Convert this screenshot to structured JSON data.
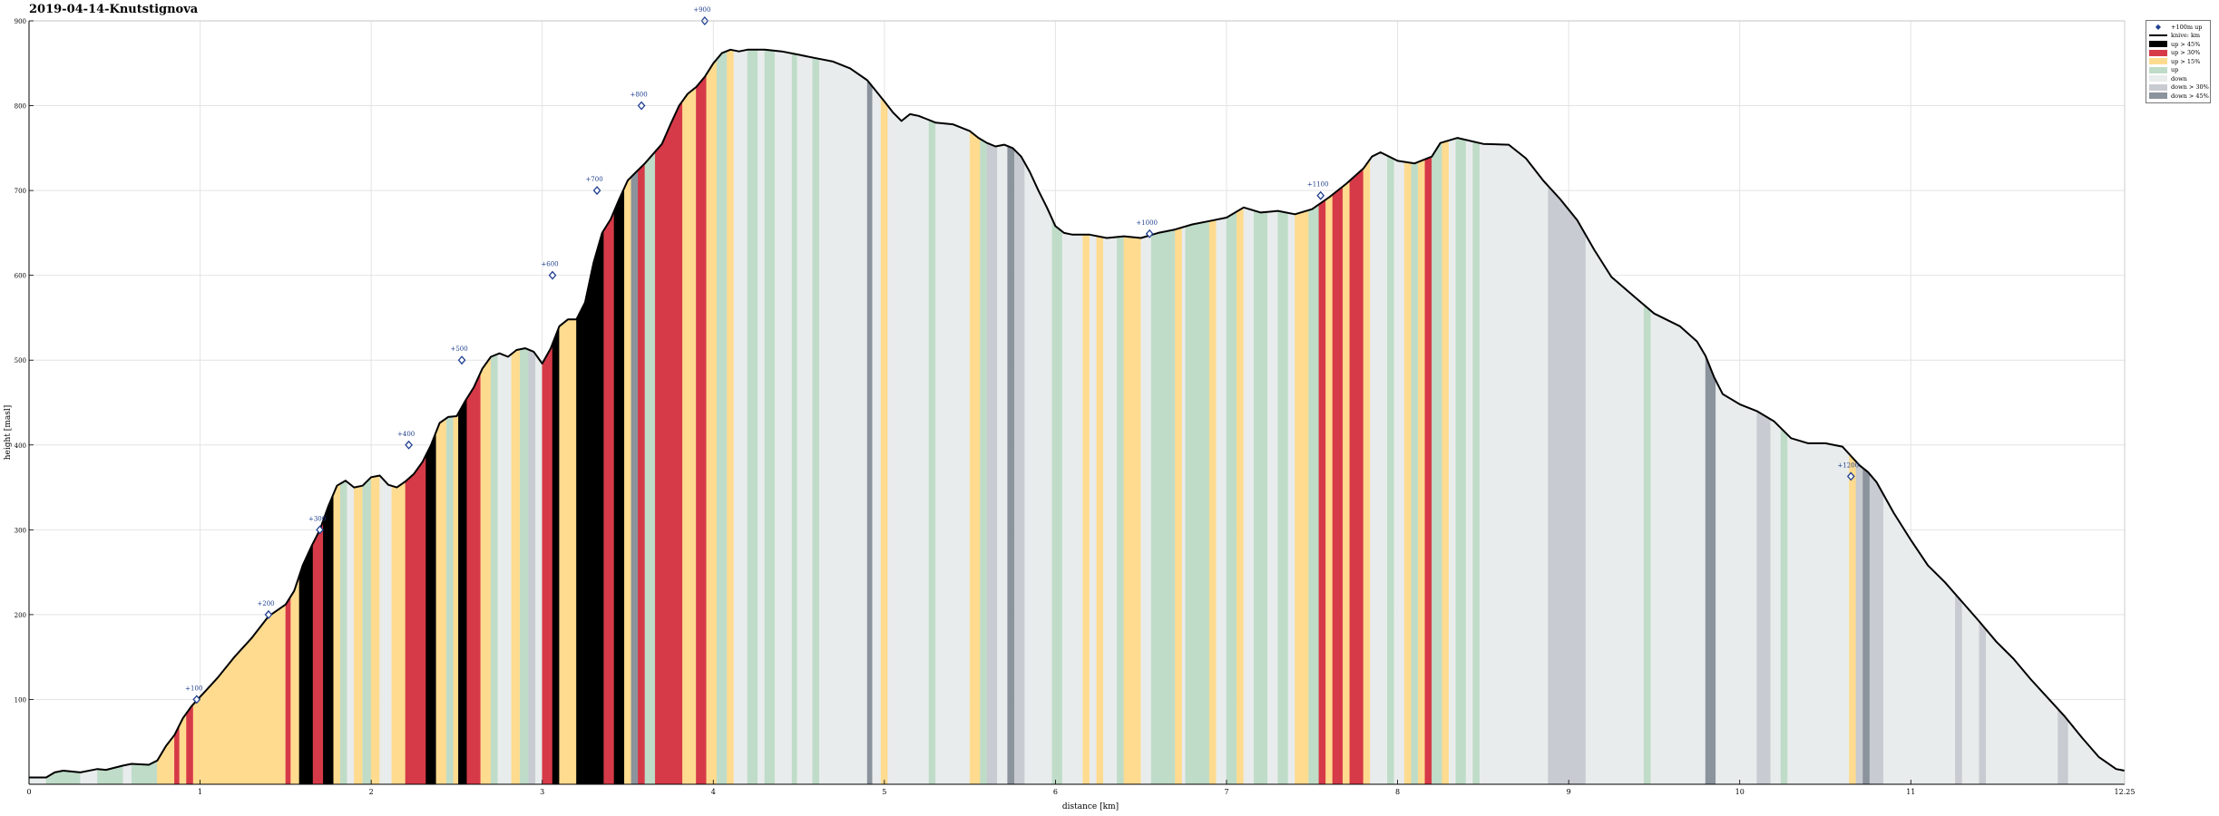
{
  "chart_data": {
    "type": "area",
    "title": "2019-04-14-Knutstignova",
    "xlabel": "distance [km]",
    "ylabel": "height [masl]",
    "xlim": [
      0,
      12.25
    ],
    "ylim": [
      0,
      900
    ],
    "x_ticks": [
      0,
      1,
      2,
      3,
      4,
      5,
      6,
      7,
      8,
      9,
      10,
      11
    ],
    "x_tick_labels": [
      "0",
      "1",
      "2",
      "3",
      "4",
      "5",
      "6",
      "7",
      "8",
      "9",
      "10",
      "11"
    ],
    "x_end_label": "12.25",
    "y_ticks": [
      100,
      200,
      300,
      400,
      500,
      600,
      700,
      800,
      900
    ],
    "y_tick_labels": [
      "100",
      "200",
      "300",
      "400",
      "500",
      "600",
      "700",
      "800",
      "900"
    ],
    "grid": true,
    "legend_position": "top-right-outside",
    "legend": [
      {
        "label": "+100m up",
        "kind": "marker",
        "color": "#1f3f8f"
      },
      {
        "label": "knive: km",
        "kind": "line",
        "color": "#000000"
      },
      {
        "label": "up > 45%",
        "kind": "swatch",
        "color": "#000000"
      },
      {
        "label": "up > 30%",
        "kind": "swatch",
        "color": "#d63a48"
      },
      {
        "label": "up > 15%",
        "kind": "swatch",
        "color": "#fedb8f"
      },
      {
        "label": "up",
        "kind": "swatch",
        "color": "#bfdcc8"
      },
      {
        "label": "down",
        "kind": "swatch",
        "color": "#e9ecec"
      },
      {
        "label": "down > 30%",
        "kind": "swatch",
        "color": "#c8cbd1"
      },
      {
        "label": "down > 45%",
        "kind": "swatch",
        "color": "#8b939d"
      }
    ],
    "colors": {
      "line": "#000000",
      "grid": "#e4e4e4",
      "axis": "#000000",
      "marker": "#1f3f8f"
    },
    "profile": [
      [
        0.0,
        8
      ],
      [
        0.1,
        8
      ],
      [
        0.15,
        14
      ],
      [
        0.2,
        16
      ],
      [
        0.3,
        14
      ],
      [
        0.4,
        18
      ],
      [
        0.45,
        17
      ],
      [
        0.55,
        22
      ],
      [
        0.6,
        24
      ],
      [
        0.7,
        23
      ],
      [
        0.75,
        28
      ],
      [
        0.8,
        45
      ],
      [
        0.85,
        58
      ],
      [
        0.9,
        78
      ],
      [
        0.95,
        92
      ],
      [
        1.0,
        103
      ],
      [
        1.1,
        125
      ],
      [
        1.2,
        150
      ],
      [
        1.3,
        172
      ],
      [
        1.4,
        198
      ],
      [
        1.5,
        212
      ],
      [
        1.55,
        228
      ],
      [
        1.6,
        258
      ],
      [
        1.65,
        280
      ],
      [
        1.7,
        300
      ],
      [
        1.75,
        328
      ],
      [
        1.8,
        352
      ],
      [
        1.85,
        358
      ],
      [
        1.9,
        350
      ],
      [
        1.95,
        352
      ],
      [
        2.0,
        362
      ],
      [
        2.05,
        364
      ],
      [
        2.1,
        353
      ],
      [
        2.15,
        350
      ],
      [
        2.2,
        357
      ],
      [
        2.25,
        366
      ],
      [
        2.3,
        380
      ],
      [
        2.35,
        400
      ],
      [
        2.4,
        426
      ],
      [
        2.45,
        433
      ],
      [
        2.5,
        434
      ],
      [
        2.55,
        452
      ],
      [
        2.6,
        468
      ],
      [
        2.65,
        490
      ],
      [
        2.7,
        504
      ],
      [
        2.75,
        508
      ],
      [
        2.8,
        504
      ],
      [
        2.85,
        512
      ],
      [
        2.9,
        514
      ],
      [
        2.95,
        510
      ],
      [
        3.0,
        496
      ],
      [
        3.05,
        514
      ],
      [
        3.1,
        540
      ],
      [
        3.15,
        548
      ],
      [
        3.2,
        548
      ],
      [
        3.25,
        568
      ],
      [
        3.3,
        615
      ],
      [
        3.35,
        650
      ],
      [
        3.4,
        666
      ],
      [
        3.45,
        690
      ],
      [
        3.5,
        712
      ],
      [
        3.55,
        722
      ],
      [
        3.6,
        732
      ],
      [
        3.7,
        755
      ],
      [
        3.75,
        778
      ],
      [
        3.8,
        800
      ],
      [
        3.85,
        814
      ],
      [
        3.9,
        822
      ],
      [
        3.95,
        834
      ],
      [
        4.0,
        850
      ],
      [
        4.05,
        862
      ],
      [
        4.1,
        866
      ],
      [
        4.15,
        864
      ],
      [
        4.2,
        866
      ],
      [
        4.3,
        866
      ],
      [
        4.4,
        864
      ],
      [
        4.5,
        860
      ],
      [
        4.6,
        856
      ],
      [
        4.7,
        852
      ],
      [
        4.8,
        844
      ],
      [
        4.9,
        830
      ],
      [
        5.0,
        805
      ],
      [
        5.05,
        792
      ],
      [
        5.1,
        782
      ],
      [
        5.15,
        790
      ],
      [
        5.2,
        788
      ],
      [
        5.25,
        784
      ],
      [
        5.3,
        780
      ],
      [
        5.4,
        778
      ],
      [
        5.5,
        770
      ],
      [
        5.55,
        762
      ],
      [
        5.6,
        756
      ],
      [
        5.65,
        752
      ],
      [
        5.7,
        754
      ],
      [
        5.75,
        750
      ],
      [
        5.8,
        740
      ],
      [
        5.85,
        722
      ],
      [
        5.9,
        700
      ],
      [
        5.95,
        680
      ],
      [
        6.0,
        658
      ],
      [
        6.05,
        650
      ],
      [
        6.1,
        648
      ],
      [
        6.2,
        648
      ],
      [
        6.3,
        644
      ],
      [
        6.4,
        646
      ],
      [
        6.5,
        644
      ],
      [
        6.6,
        650
      ],
      [
        6.7,
        654
      ],
      [
        6.8,
        660
      ],
      [
        6.9,
        664
      ],
      [
        7.0,
        668
      ],
      [
        7.1,
        680
      ],
      [
        7.2,
        674
      ],
      [
        7.3,
        676
      ],
      [
        7.4,
        672
      ],
      [
        7.5,
        678
      ],
      [
        7.6,
        692
      ],
      [
        7.7,
        708
      ],
      [
        7.8,
        726
      ],
      [
        7.85,
        740
      ],
      [
        7.9,
        745
      ],
      [
        8.0,
        735
      ],
      [
        8.1,
        732
      ],
      [
        8.2,
        740
      ],
      [
        8.25,
        756
      ],
      [
        8.35,
        762
      ],
      [
        8.5,
        755
      ],
      [
        8.65,
        754
      ],
      [
        8.75,
        738
      ],
      [
        8.85,
        712
      ],
      [
        8.95,
        690
      ],
      [
        9.05,
        665
      ],
      [
        9.15,
        630
      ],
      [
        9.25,
        598
      ],
      [
        9.4,
        572
      ],
      [
        9.5,
        555
      ],
      [
        9.65,
        540
      ],
      [
        9.75,
        522
      ],
      [
        9.8,
        505
      ],
      [
        9.85,
        480
      ],
      [
        9.9,
        460
      ],
      [
        10.0,
        448
      ],
      [
        10.1,
        440
      ],
      [
        10.2,
        428
      ],
      [
        10.3,
        408
      ],
      [
        10.4,
        402
      ],
      [
        10.5,
        402
      ],
      [
        10.6,
        398
      ],
      [
        10.7,
        376
      ],
      [
        10.75,
        368
      ],
      [
        10.8,
        356
      ],
      [
        10.9,
        320
      ],
      [
        11.0,
        288
      ],
      [
        11.1,
        258
      ],
      [
        11.2,
        238
      ],
      [
        11.3,
        215
      ],
      [
        11.4,
        192
      ],
      [
        11.5,
        168
      ],
      [
        11.6,
        148
      ],
      [
        11.7,
        124
      ],
      [
        11.8,
        102
      ],
      [
        11.9,
        80
      ],
      [
        12.0,
        55
      ],
      [
        12.1,
        32
      ],
      [
        12.2,
        18
      ],
      [
        12.25,
        16
      ]
    ],
    "markers": [
      {
        "x": 0.98,
        "y": 100,
        "label": "+100"
      },
      {
        "x": 1.4,
        "y": 200,
        "label": "+200"
      },
      {
        "x": 1.7,
        "y": 300,
        "label": "+300"
      },
      {
        "x": 2.22,
        "y": 400,
        "label": "+400"
      },
      {
        "x": 2.53,
        "y": 500,
        "label": "+500"
      },
      {
        "x": 3.06,
        "y": 600,
        "label": "+600"
      },
      {
        "x": 3.32,
        "y": 700,
        "label": "+700"
      },
      {
        "x": 3.58,
        "y": 800,
        "label": "+800"
      },
      {
        "x": 3.95,
        "y": 900,
        "label": "+900"
      },
      {
        "x": 6.55,
        "y": 649,
        "label": "+1000"
      },
      {
        "x": 7.55,
        "y": 694,
        "label": "+1100"
      },
      {
        "x": 10.65,
        "y": 363,
        "label": "+1200"
      }
    ],
    "segments": [
      [
        0.0,
        0.1,
        "down"
      ],
      [
        0.1,
        0.3,
        "up"
      ],
      [
        0.3,
        0.4,
        "down"
      ],
      [
        0.4,
        0.55,
        "up"
      ],
      [
        0.55,
        0.6,
        "down"
      ],
      [
        0.6,
        0.75,
        "up"
      ],
      [
        0.75,
        0.85,
        "up15"
      ],
      [
        0.85,
        0.88,
        "up30"
      ],
      [
        0.88,
        0.92,
        "up15"
      ],
      [
        0.92,
        0.96,
        "up30"
      ],
      [
        0.96,
        1.5,
        "up15"
      ],
      [
        1.5,
        1.53,
        "up30"
      ],
      [
        1.53,
        1.58,
        "up15"
      ],
      [
        1.58,
        1.66,
        "up45"
      ],
      [
        1.66,
        1.72,
        "up30"
      ],
      [
        1.72,
        1.78,
        "up45"
      ],
      [
        1.78,
        1.82,
        "up15"
      ],
      [
        1.82,
        1.86,
        "up"
      ],
      [
        1.86,
        1.9,
        "down"
      ],
      [
        1.9,
        1.95,
        "up15"
      ],
      [
        1.95,
        2.0,
        "up"
      ],
      [
        2.0,
        2.05,
        "up15"
      ],
      [
        2.05,
        2.12,
        "down"
      ],
      [
        2.12,
        2.2,
        "up15"
      ],
      [
        2.2,
        2.32,
        "up30"
      ],
      [
        2.32,
        2.38,
        "up45"
      ],
      [
        2.38,
        2.44,
        "up15"
      ],
      [
        2.44,
        2.48,
        "up"
      ],
      [
        2.48,
        2.51,
        "up15"
      ],
      [
        2.51,
        2.56,
        "up45"
      ],
      [
        2.56,
        2.64,
        "up30"
      ],
      [
        2.64,
        2.7,
        "up15"
      ],
      [
        2.7,
        2.74,
        "up"
      ],
      [
        2.74,
        2.82,
        "down"
      ],
      [
        2.82,
        2.87,
        "up15"
      ],
      [
        2.87,
        2.92,
        "up"
      ],
      [
        2.92,
        2.96,
        "down30"
      ],
      [
        2.96,
        3.0,
        "down"
      ],
      [
        3.0,
        3.06,
        "up30"
      ],
      [
        3.06,
        3.1,
        "up45"
      ],
      [
        3.1,
        3.2,
        "up15"
      ],
      [
        3.2,
        3.36,
        "up45"
      ],
      [
        3.36,
        3.42,
        "up30"
      ],
      [
        3.42,
        3.48,
        "up45"
      ],
      [
        3.48,
        3.52,
        "up15"
      ],
      [
        3.52,
        3.56,
        "down45"
      ],
      [
        3.56,
        3.6,
        "up30"
      ],
      [
        3.6,
        3.66,
        "up"
      ],
      [
        3.66,
        3.82,
        "up30"
      ],
      [
        3.82,
        3.9,
        "up15"
      ],
      [
        3.9,
        3.96,
        "up30"
      ],
      [
        3.96,
        4.02,
        "up15"
      ],
      [
        4.02,
        4.08,
        "up"
      ],
      [
        4.08,
        4.12,
        "up15"
      ],
      [
        4.12,
        4.2,
        "down"
      ],
      [
        4.2,
        4.26,
        "up"
      ],
      [
        4.26,
        4.3,
        "down"
      ],
      [
        4.3,
        4.36,
        "up"
      ],
      [
        4.36,
        4.46,
        "down"
      ],
      [
        4.46,
        4.49,
        "up"
      ],
      [
        4.49,
        4.58,
        "down"
      ],
      [
        4.58,
        4.62,
        "up"
      ],
      [
        4.62,
        4.9,
        "down"
      ],
      [
        4.9,
        4.93,
        "down45"
      ],
      [
        4.93,
        4.98,
        "down"
      ],
      [
        4.98,
        5.02,
        "up15"
      ],
      [
        5.02,
        5.26,
        "down"
      ],
      [
        5.26,
        5.3,
        "up"
      ],
      [
        5.3,
        5.5,
        "down"
      ],
      [
        5.5,
        5.56,
        "up15"
      ],
      [
        5.56,
        5.6,
        "up"
      ],
      [
        5.6,
        5.66,
        "down30"
      ],
      [
        5.66,
        5.72,
        "down"
      ],
      [
        5.72,
        5.76,
        "down45"
      ],
      [
        5.76,
        5.82,
        "down30"
      ],
      [
        5.82,
        5.98,
        "down"
      ],
      [
        5.98,
        6.04,
        "up"
      ],
      [
        6.04,
        6.16,
        "down"
      ],
      [
        6.16,
        6.2,
        "up15"
      ],
      [
        6.2,
        6.24,
        "down"
      ],
      [
        6.24,
        6.28,
        "up15"
      ],
      [
        6.28,
        6.36,
        "down"
      ],
      [
        6.36,
        6.4,
        "up"
      ],
      [
        6.4,
        6.5,
        "up15"
      ],
      [
        6.5,
        6.56,
        "down"
      ],
      [
        6.56,
        6.7,
        "up"
      ],
      [
        6.7,
        6.74,
        "up15"
      ],
      [
        6.74,
        6.76,
        "down"
      ],
      [
        6.76,
        6.9,
        "up"
      ],
      [
        6.9,
        6.94,
        "up15"
      ],
      [
        6.94,
        7.0,
        "down"
      ],
      [
        7.0,
        7.06,
        "up"
      ],
      [
        7.06,
        7.1,
        "up15"
      ],
      [
        7.1,
        7.16,
        "down"
      ],
      [
        7.16,
        7.24,
        "up"
      ],
      [
        7.24,
        7.3,
        "down"
      ],
      [
        7.3,
        7.36,
        "up"
      ],
      [
        7.36,
        7.4,
        "down"
      ],
      [
        7.4,
        7.48,
        "up15"
      ],
      [
        7.48,
        7.54,
        "up"
      ],
      [
        7.54,
        7.58,
        "up30"
      ],
      [
        7.58,
        7.62,
        "up15"
      ],
      [
        7.62,
        7.68,
        "up30"
      ],
      [
        7.68,
        7.72,
        "up15"
      ],
      [
        7.72,
        7.8,
        "up30"
      ],
      [
        7.8,
        7.84,
        "up15"
      ],
      [
        7.84,
        7.94,
        "down"
      ],
      [
        7.94,
        7.98,
        "up"
      ],
      [
        7.98,
        8.04,
        "down"
      ],
      [
        8.04,
        8.08,
        "up15"
      ],
      [
        8.08,
        8.12,
        "up"
      ],
      [
        8.12,
        8.16,
        "up15"
      ],
      [
        8.16,
        8.2,
        "up30"
      ],
      [
        8.2,
        8.26,
        "up"
      ],
      [
        8.26,
        8.3,
        "up15"
      ],
      [
        8.3,
        8.34,
        "down"
      ],
      [
        8.34,
        8.4,
        "up"
      ],
      [
        8.4,
        8.44,
        "down"
      ],
      [
        8.44,
        8.48,
        "up"
      ],
      [
        8.48,
        8.88,
        "down"
      ],
      [
        8.88,
        8.92,
        "down30"
      ],
      [
        8.92,
        9.1,
        "down30"
      ],
      [
        9.1,
        9.44,
        "down"
      ],
      [
        9.44,
        9.48,
        "up"
      ],
      [
        9.48,
        9.8,
        "down"
      ],
      [
        9.8,
        9.86,
        "down45"
      ],
      [
        9.86,
        10.1,
        "down"
      ],
      [
        10.1,
        10.18,
        "down30"
      ],
      [
        10.18,
        10.24,
        "down"
      ],
      [
        10.24,
        10.28,
        "up"
      ],
      [
        10.28,
        10.64,
        "down"
      ],
      [
        10.64,
        10.68,
        "up15"
      ],
      [
        10.68,
        10.72,
        "down30"
      ],
      [
        10.72,
        10.76,
        "down45"
      ],
      [
        10.76,
        10.84,
        "down30"
      ],
      [
        10.84,
        11.26,
        "down"
      ],
      [
        11.26,
        11.3,
        "down30"
      ],
      [
        11.3,
        11.4,
        "down"
      ],
      [
        11.4,
        11.44,
        "down30"
      ],
      [
        11.44,
        11.86,
        "down"
      ],
      [
        11.86,
        11.92,
        "down30"
      ],
      [
        11.92,
        12.25,
        "down"
      ]
    ]
  }
}
